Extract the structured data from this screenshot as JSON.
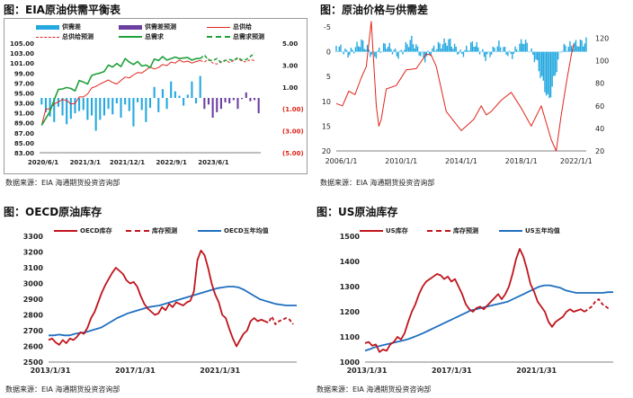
{
  "chart_data": [
    {
      "type": "bar",
      "title": "图：EIA原油供需平衡表",
      "source": "数据来源：EIA   海通期货投资咨询部",
      "legend": [
        "供需差",
        "供需差预测",
        "总供给",
        "总供给预测",
        "总需求",
        "总需求预测"
      ],
      "x_ticks": [
        "2020/6/1",
        "2021/3/1",
        "2021/12/1",
        "2022/9/1",
        "2023/6/1"
      ],
      "y_left_ticks": [
        "83.00",
        "85.00",
        "87.00",
        "89.00",
        "91.00",
        "93.00",
        "95.00",
        "97.00",
        "99.00",
        "101.00",
        "103.00",
        "105.00"
      ],
      "y_left_lim": [
        83,
        105
      ],
      "y_right_ticks": [
        "(5.00)",
        "(3.00)",
        "(1.00)",
        "1.00",
        "3.00",
        "5.00"
      ],
      "y_right_lim": [
        -5,
        5
      ],
      "gap_actual": [
        -0.6,
        -1.3,
        -1.7,
        -2.2,
        -0.8,
        -1.6,
        -2.4,
        -1.9,
        -1.4,
        -1.2,
        -1.1,
        -2.0,
        -1.6,
        -3.0,
        -2.0,
        -1.6,
        -1.0,
        -1.5,
        -0.5,
        -1.8,
        -0.6,
        -1.2,
        -2.6,
        -0.4,
        -1.1,
        -2.2,
        -0.9,
        1.0,
        -1.3,
        0.8,
        -1.0,
        1.5,
        0.6,
        0.2,
        -0.7,
        0.3,
        1.5,
        -0.5,
        2.0
      ],
      "gap_forecast": [
        -1.0,
        -0.6,
        -1.8,
        -1.3,
        -1.0,
        -0.4,
        -0.5,
        -0.2,
        -1.0,
        -0.1,
        0.5,
        -0.3,
        -0.2,
        -1.4
      ],
      "supply": [
        88.5,
        91.8,
        91.8,
        92.8,
        93.2,
        93.7,
        93.5,
        92.8,
        92.9,
        94.2,
        94.2,
        94.8,
        96.0,
        96.3,
        96.8,
        97.2,
        97.6,
        97.1,
        96.8,
        97.5,
        98.2,
        98.0,
        98.6,
        99.1,
        99.0,
        99.6,
        100.2,
        99.8,
        100.1,
        100.7,
        100.5,
        101.2,
        101.0,
        101.6,
        101.2,
        101.4,
        101.0,
        101.3,
        101.5
      ],
      "supply_forecast": [
        101.5,
        101.2,
        101.8,
        101.0,
        100.8,
        101.3,
        101.6,
        101.1,
        101.5,
        101.9,
        101.4,
        101.2,
        101.7,
        101.5
      ],
      "demand": [
        88.5,
        89.9,
        91.3,
        93.6,
        95.7,
        95.8,
        96.1,
        95.9,
        95.4,
        97.5,
        97.2,
        96.8,
        98.5,
        98.8,
        99.0,
        99.3,
        100.6,
        100.2,
        100.9,
        100.3,
        101.9,
        101.2,
        100.7,
        101.3,
        100.4,
        100.6,
        100.1,
        101.8,
        101.5,
        102.3,
        101.6,
        101.9,
        102.2,
        101.9,
        102.0,
        102.1,
        101.6,
        101.9,
        101.9
      ],
      "demand_forecast": [
        101.9,
        102.6,
        101.6,
        101.5,
        101.9,
        101.1,
        101.5,
        101.7,
        101.5,
        102.1,
        101.6,
        101.7,
        102.3,
        103.0
      ]
    },
    {
      "type": "line",
      "title": "图：原油价格与供需差",
      "x_ticks": [
        "2006/1/1",
        "2010/1/1",
        "2014/1/1",
        "2018/1/1",
        "2022/1/1"
      ],
      "y_left_ticks": [
        "-5",
        "0",
        "5",
        "10",
        "15",
        "20"
      ],
      "y_left_lim": [
        -5,
        20
      ],
      "y_left_inverted": true,
      "y_right_ticks": [
        "120",
        "100",
        "80",
        "60",
        "40",
        "20"
      ],
      "y_right_lim": [
        20,
        130
      ],
      "gap_bars_x": [
        0,
        0.05,
        0.1,
        0.15,
        0.2,
        0.25,
        0.3,
        0.35,
        0.4,
        0.45,
        0.5,
        0.55,
        0.6,
        0.65,
        0.7,
        0.75,
        0.8,
        0.85,
        0.9,
        0.95,
        1.0
      ],
      "gap_bars_y": [
        -1.2,
        0.5,
        -2.0,
        1.0,
        -1.5,
        0.8,
        -2.5,
        1.5,
        -1.0,
        -2.2,
        0.6,
        -1.8,
        1.2,
        -1.4,
        0.9,
        -2.4,
        1.8,
        10.0,
        -0.6,
        -1.5,
        -2.0
      ],
      "price_x": [
        0,
        0.025,
        0.05,
        0.075,
        0.1,
        0.12,
        0.14,
        0.16,
        0.17,
        0.18,
        0.2,
        0.24,
        0.28,
        0.32,
        0.36,
        0.38,
        0.4,
        0.44,
        0.5,
        0.55,
        0.58,
        0.6,
        0.62,
        0.66,
        0.7,
        0.74,
        0.78,
        0.82,
        0.84,
        0.86,
        0.88,
        0.9,
        0.92,
        0.94,
        0.95
      ],
      "price_y": [
        62,
        60,
        73,
        70,
        85,
        95,
        135,
        60,
        42,
        48,
        75,
        78,
        92,
        93,
        106,
        105,
        95,
        55,
        38,
        48,
        60,
        52,
        55,
        65,
        72,
        58,
        42,
        60,
        45,
        30,
        20,
        52,
        80,
        105,
        115
      ]
    },
    {
      "type": "line",
      "title": "图：OECD原油库存",
      "source": "数据来源：EIA   海通期货投资咨询部",
      "legend": [
        "OECD库存",
        "库存预测",
        "OECD五年均值"
      ],
      "x_ticks": [
        "2013/1/31",
        "2017/1/31",
        "2021/1/31"
      ],
      "y_ticks": [
        "2500",
        "2600",
        "2700",
        "2800",
        "2900",
        "3000",
        "3100",
        "3200",
        "3300"
      ],
      "ylim": [
        2500,
        3300
      ],
      "x_years": [
        2013,
        2024.7
      ],
      "stock": [
        2640,
        2650,
        2625,
        2610,
        2640,
        2620,
        2650,
        2640,
        2660,
        2690,
        2680,
        2720,
        2780,
        2820,
        2880,
        2940,
        2990,
        3030,
        3070,
        3100,
        3080,
        3060,
        3020,
        3000,
        3010,
        2980,
        2920,
        2870,
        2840,
        2820,
        2800,
        2810,
        2850,
        2830,
        2870,
        2850,
        2880,
        2870,
        2860,
        2880,
        2890,
        2950,
        3150,
        3210,
        3180,
        3100,
        3000,
        2930,
        2880,
        2800,
        2780,
        2710,
        2650,
        2600,
        2640,
        2680,
        2700,
        2760,
        2780,
        2760,
        2770,
        2760
      ],
      "stock_forecast": [
        2760,
        2750,
        2790,
        2740,
        2760,
        2770,
        2780,
        2770,
        2740
      ],
      "avg": [
        2670,
        2670,
        2675,
        2670,
        2670,
        2680,
        2685,
        2690,
        2700,
        2710,
        2720,
        2740,
        2760,
        2780,
        2795,
        2810,
        2820,
        2830,
        2840,
        2850,
        2855,
        2860,
        2870,
        2880,
        2890,
        2900,
        2910,
        2920,
        2930,
        2940,
        2950,
        2960,
        2970,
        2975,
        2980,
        2980,
        2975,
        2960,
        2940,
        2920,
        2900,
        2890,
        2880,
        2870,
        2865,
        2860,
        2860,
        2860
      ]
    },
    {
      "type": "line",
      "title": "图：US原油库存",
      "source": "数据来源：EIA   海通期货投资咨询部",
      "legend": [
        "US库存",
        "库存预测",
        "US五年均值"
      ],
      "x_ticks": [
        "2013/1/31",
        "2017/1/31",
        "2021/1/31"
      ],
      "y_ticks": [
        "1000",
        "1100",
        "1200",
        "1300",
        "1400",
        "1500"
      ],
      "ylim": [
        1000,
        1500
      ],
      "x_years": [
        2013,
        2024.7
      ],
      "stock": [
        1075,
        1080,
        1065,
        1070,
        1040,
        1050,
        1045,
        1070,
        1080,
        1100,
        1090,
        1115,
        1160,
        1200,
        1230,
        1270,
        1300,
        1320,
        1330,
        1340,
        1350,
        1345,
        1330,
        1340,
        1320,
        1330,
        1300,
        1270,
        1230,
        1210,
        1200,
        1215,
        1220,
        1210,
        1225,
        1240,
        1255,
        1270,
        1250,
        1270,
        1300,
        1350,
        1410,
        1450,
        1420,
        1370,
        1310,
        1280,
        1240,
        1220,
        1200,
        1160,
        1140,
        1160,
        1170,
        1180,
        1200,
        1210,
        1200,
        1205,
        1210,
        1200
      ],
      "stock_forecast": [
        1200,
        1210,
        1220,
        1240,
        1250,
        1230,
        1220,
        1210
      ],
      "avg": [
        1045,
        1052,
        1060,
        1065,
        1070,
        1075,
        1080,
        1085,
        1090,
        1098,
        1106,
        1115,
        1125,
        1135,
        1145,
        1155,
        1165,
        1175,
        1185,
        1195,
        1205,
        1210,
        1215,
        1220,
        1225,
        1230,
        1235,
        1240,
        1250,
        1260,
        1270,
        1280,
        1290,
        1300,
        1305,
        1305,
        1300,
        1295,
        1285,
        1280,
        1275,
        1275,
        1275,
        1275,
        1275,
        1275,
        1278,
        1278
      ]
    }
  ]
}
